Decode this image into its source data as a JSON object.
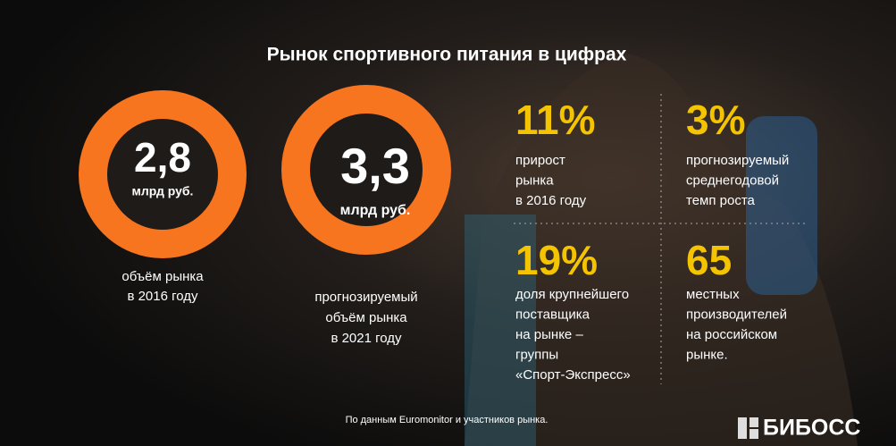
{
  "header": {
    "title": "Рынок спортивного питания в цифрах"
  },
  "circles": [
    {
      "value": "2,8",
      "unit": "млрд руб.",
      "caption": [
        "объём рынка",
        "в 2016 году"
      ]
    },
    {
      "value": "3,3",
      "unit": "млрд руб.",
      "caption": [
        "прогнозируемый",
        "объём рынка",
        "в 2021 году"
      ]
    }
  ],
  "stats": [
    {
      "value": "11%",
      "caption": [
        "прирост",
        "рынка",
        "в 2016 году"
      ]
    },
    {
      "value": "3%",
      "caption": [
        "прогнозируемый",
        "среднегодовой",
        "темп роста"
      ]
    },
    {
      "value": "19%",
      "caption": [
        "доля крупнейшего",
        "поставщика",
        "на рынке –",
        "группы",
        "«Спорт-Экспресс»"
      ]
    },
    {
      "value": "65",
      "caption": [
        "местных",
        "производителей",
        "на российском",
        "рынке."
      ]
    }
  ],
  "footnote": "По данным Euromonitor и участников рынка.",
  "logo": "БИБОСС"
}
